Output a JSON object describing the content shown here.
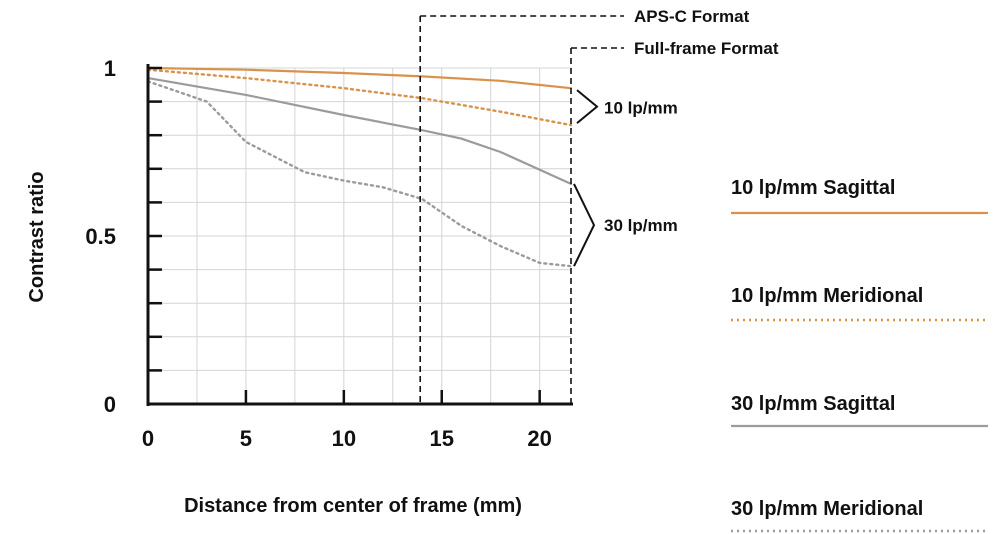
{
  "chart_data": {
    "type": "line",
    "xlabel": "Distance from center of frame (mm)",
    "ylabel": "Contrast ratio",
    "xlim": [
      0,
      21.6
    ],
    "ylim": [
      0,
      1
    ],
    "x_ticks": [
      0,
      5,
      10,
      15,
      20
    ],
    "y_tick_labels": [
      {
        "value": 1,
        "label": "1"
      },
      {
        "value": 0.5,
        "label": "0.5"
      },
      {
        "value": 0,
        "label": "0"
      }
    ],
    "y_minor_ticks": [
      0.1,
      0.2,
      0.3,
      0.4,
      0.6,
      0.7,
      0.8,
      0.9
    ],
    "grid": true,
    "series": [
      {
        "name": "10 lp/mm Sagittal",
        "color": "#d9924a",
        "style": "solid",
        "points": [
          [
            0,
            1.0
          ],
          [
            5,
            0.995
          ],
          [
            10,
            0.985
          ],
          [
            14,
            0.975
          ],
          [
            18,
            0.962
          ],
          [
            21.6,
            0.94
          ]
        ]
      },
      {
        "name": "10 lp/mm Meridional",
        "color": "#d9924a",
        "style": "dotted",
        "points": [
          [
            0,
            0.995
          ],
          [
            5,
            0.97
          ],
          [
            10,
            0.94
          ],
          [
            14,
            0.91
          ],
          [
            18,
            0.87
          ],
          [
            21.6,
            0.83
          ]
        ]
      },
      {
        "name": "30 lp/mm Sagittal",
        "color": "#9b9b9b",
        "style": "solid",
        "points": [
          [
            0,
            0.97
          ],
          [
            5,
            0.92
          ],
          [
            10,
            0.86
          ],
          [
            14,
            0.815
          ],
          [
            16,
            0.79
          ],
          [
            18,
            0.75
          ],
          [
            21.6,
            0.655
          ]
        ]
      },
      {
        "name": "30 lp/mm Meridional",
        "color": "#9b9b9b",
        "style": "dotted",
        "points": [
          [
            0,
            0.96
          ],
          [
            3,
            0.9
          ],
          [
            5,
            0.78
          ],
          [
            8,
            0.69
          ],
          [
            10,
            0.665
          ],
          [
            12,
            0.645
          ],
          [
            14,
            0.61
          ],
          [
            16,
            0.53
          ],
          [
            18,
            0.47
          ],
          [
            20,
            0.42
          ],
          [
            21.6,
            0.41
          ]
        ]
      }
    ],
    "format_markers": [
      {
        "label": "APS-C Format",
        "x": 13.9
      },
      {
        "label": "Full-frame Format",
        "x": 21.6
      }
    ],
    "group_labels": [
      "10 lp/mm",
      "30 lp/mm"
    ],
    "legend_position": "right"
  }
}
